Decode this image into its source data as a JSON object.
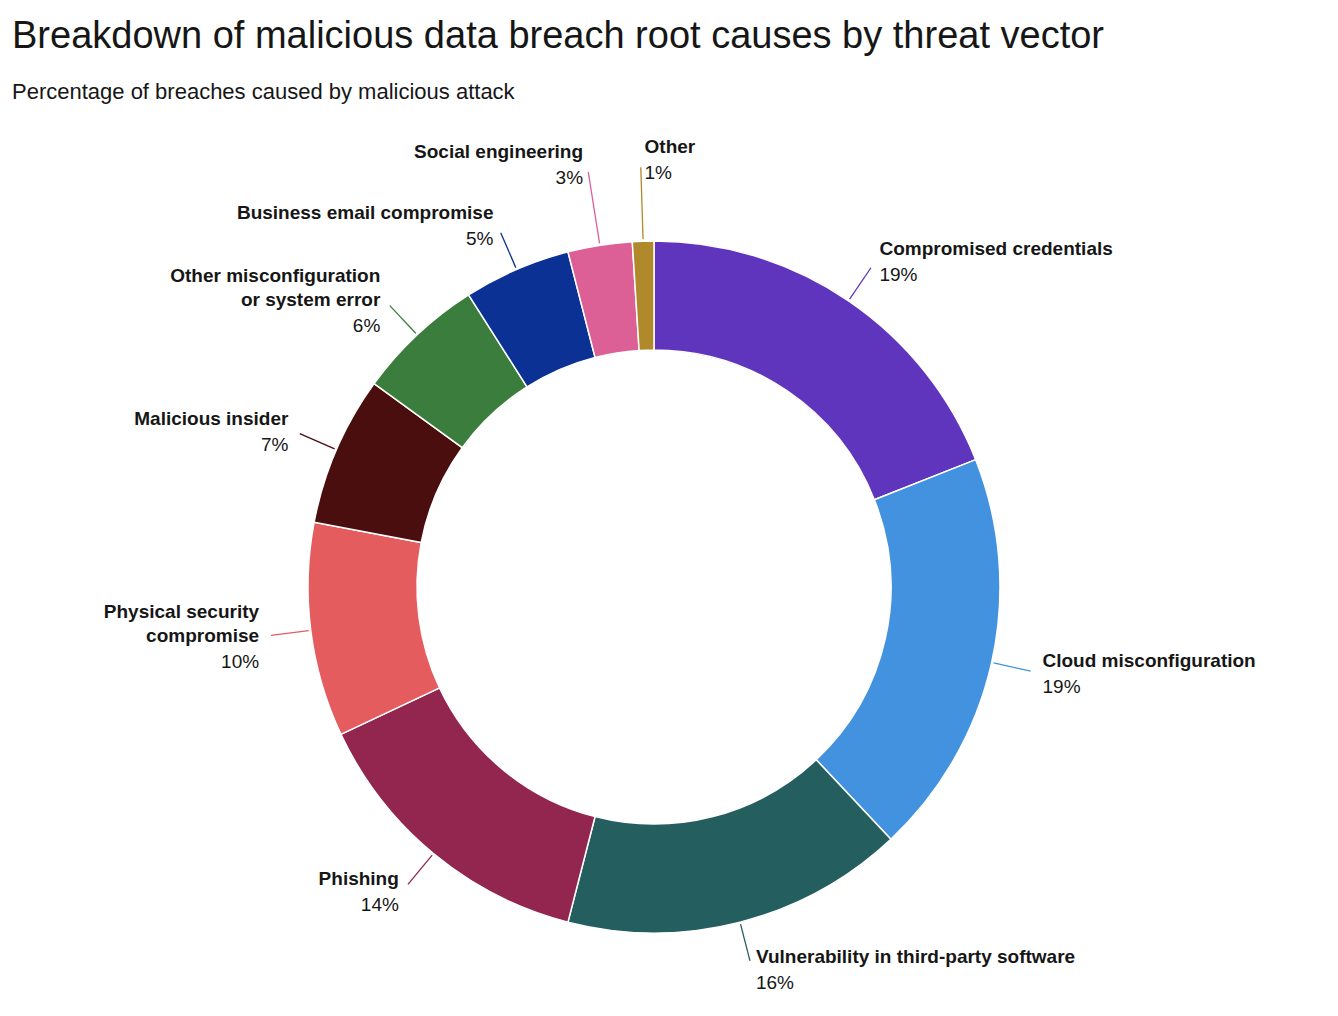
{
  "chart_data": {
    "type": "pie",
    "title": "Breakdown of malicious data breach root causes by threat vector",
    "subtitle": "Percentage of breaches caused by malicious attack",
    "categories": [
      "Compromised credentials",
      "Cloud misconfiguration",
      "Vulnerability in third-party software",
      "Phishing",
      "Physical security compromise",
      "Malicious insider",
      "Other misconfiguration or system error",
      "Business email compromise",
      "Social engineering",
      "Other"
    ],
    "values": [
      19,
      19,
      16,
      14,
      10,
      7,
      6,
      5,
      3,
      1
    ],
    "value_labels": [
      "19%",
      "19%",
      "16%",
      "14%",
      "10%",
      "7%",
      "6%",
      "5%",
      "3%",
      "1%"
    ],
    "colors": [
      "#5f35be",
      "#4292e0",
      "#255e5f",
      "#92264f",
      "#e55c5f",
      "#4a0e0e",
      "#3b7d3d",
      "#0a3193",
      "#dc5f96",
      "#b08a2a"
    ],
    "data_labels": true
  }
}
